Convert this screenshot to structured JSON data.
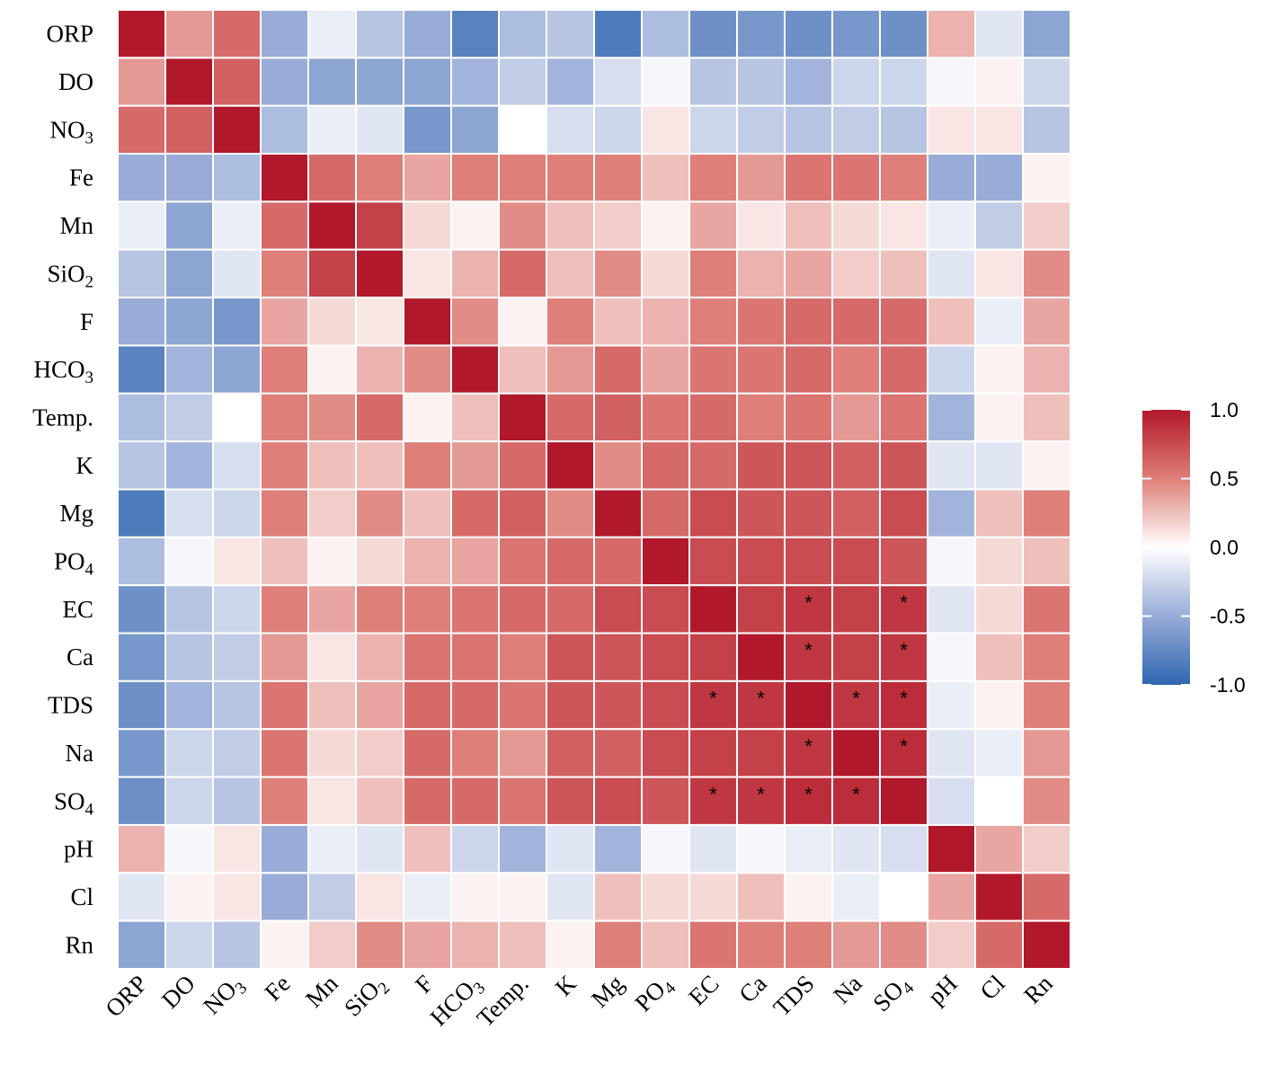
{
  "chart_data": {
    "type": "heatmap",
    "variables": [
      {
        "id": "ORP",
        "base": "ORP",
        "sub": ""
      },
      {
        "id": "DO",
        "base": "DO",
        "sub": ""
      },
      {
        "id": "NO3",
        "base": "NO",
        "sub": "3"
      },
      {
        "id": "Fe",
        "base": "Fe",
        "sub": ""
      },
      {
        "id": "Mn",
        "base": "Mn",
        "sub": ""
      },
      {
        "id": "SiO2",
        "base": "SiO",
        "sub": "2"
      },
      {
        "id": "F",
        "base": "F",
        "sub": ""
      },
      {
        "id": "HCO3",
        "base": "HCO",
        "sub": "3"
      },
      {
        "id": "Temp.",
        "base": "Temp.",
        "sub": ""
      },
      {
        "id": "K",
        "base": "K",
        "sub": ""
      },
      {
        "id": "Mg",
        "base": "Mg",
        "sub": ""
      },
      {
        "id": "PO4",
        "base": "PO",
        "sub": "4"
      },
      {
        "id": "EC",
        "base": "EC",
        "sub": ""
      },
      {
        "id": "Ca",
        "base": "Ca",
        "sub": ""
      },
      {
        "id": "TDS",
        "base": "TDS",
        "sub": ""
      },
      {
        "id": "Na",
        "base": "Na",
        "sub": ""
      },
      {
        "id": "SO4",
        "base": "SO",
        "sub": "4"
      },
      {
        "id": "pH",
        "base": "pH",
        "sub": ""
      },
      {
        "id": "Cl",
        "base": "Cl",
        "sub": ""
      },
      {
        "id": "Rn",
        "base": "Rn",
        "sub": ""
      }
    ],
    "matrix": [
      [
        1.0,
        0.4,
        0.6,
        -0.5,
        -0.1,
        -0.35,
        -0.5,
        -0.8,
        -0.4,
        -0.35,
        -0.85,
        -0.4,
        -0.7,
        -0.65,
        -0.7,
        -0.65,
        -0.7,
        0.3,
        -0.15,
        -0.55
      ],
      [
        0.4,
        1.0,
        0.65,
        -0.5,
        -0.55,
        -0.55,
        -0.55,
        -0.45,
        -0.3,
        -0.45,
        -0.2,
        -0.05,
        -0.35,
        -0.35,
        -0.45,
        -0.25,
        -0.25,
        -0.05,
        0.05,
        -0.25
      ],
      [
        0.6,
        0.65,
        1.0,
        -0.4,
        -0.1,
        -0.15,
        -0.65,
        -0.55,
        0.0,
        -0.2,
        -0.25,
        0.1,
        -0.25,
        -0.3,
        -0.35,
        -0.3,
        -0.35,
        0.1,
        0.1,
        -0.35
      ],
      [
        -0.5,
        -0.5,
        -0.4,
        1.0,
        0.6,
        0.5,
        0.35,
        0.5,
        0.5,
        0.5,
        0.5,
        0.25,
        0.5,
        0.4,
        0.55,
        0.55,
        0.5,
        -0.5,
        -0.5,
        0.05
      ],
      [
        -0.1,
        -0.55,
        -0.1,
        0.6,
        1.0,
        0.8,
        0.15,
        0.05,
        0.45,
        0.25,
        0.2,
        0.05,
        0.35,
        0.1,
        0.25,
        0.15,
        0.1,
        -0.1,
        -0.3,
        0.2
      ],
      [
        -0.35,
        -0.55,
        -0.15,
        0.5,
        0.8,
        1.0,
        0.1,
        0.3,
        0.6,
        0.25,
        0.45,
        0.15,
        0.5,
        0.3,
        0.35,
        0.2,
        0.25,
        -0.15,
        0.1,
        0.45
      ],
      [
        -0.5,
        -0.55,
        -0.65,
        0.35,
        0.15,
        0.1,
        1.0,
        0.45,
        0.05,
        0.5,
        0.25,
        0.3,
        0.5,
        0.55,
        0.6,
        0.6,
        0.6,
        0.25,
        -0.1,
        0.35
      ],
      [
        -0.8,
        -0.45,
        -0.55,
        0.5,
        0.05,
        0.3,
        0.45,
        1.0,
        0.25,
        0.4,
        0.6,
        0.35,
        0.55,
        0.55,
        0.6,
        0.5,
        0.6,
        -0.25,
        0.05,
        0.3
      ],
      [
        -0.4,
        -0.3,
        0.0,
        0.5,
        0.45,
        0.6,
        0.05,
        0.25,
        1.0,
        0.6,
        0.65,
        0.55,
        0.6,
        0.5,
        0.55,
        0.4,
        0.55,
        -0.45,
        0.05,
        0.25
      ],
      [
        -0.35,
        -0.45,
        -0.2,
        0.5,
        0.25,
        0.25,
        0.5,
        0.4,
        0.6,
        1.0,
        0.45,
        0.6,
        0.6,
        0.7,
        0.7,
        0.65,
        0.7,
        -0.15,
        -0.15,
        0.05
      ],
      [
        -0.85,
        -0.2,
        -0.25,
        0.5,
        0.2,
        0.45,
        0.25,
        0.6,
        0.65,
        0.45,
        1.0,
        0.6,
        0.75,
        0.7,
        0.7,
        0.65,
        0.75,
        -0.45,
        0.25,
        0.5
      ],
      [
        -0.4,
        -0.05,
        0.1,
        0.25,
        0.05,
        0.15,
        0.3,
        0.35,
        0.55,
        0.6,
        0.6,
        1.0,
        0.75,
        0.75,
        0.75,
        0.75,
        0.7,
        -0.05,
        0.15,
        0.25
      ],
      [
        -0.7,
        -0.35,
        -0.25,
        0.5,
        0.35,
        0.5,
        0.5,
        0.55,
        0.6,
        0.6,
        0.75,
        0.75,
        1.0,
        0.8,
        0.85,
        0.8,
        0.85,
        -0.15,
        0.15,
        0.55
      ],
      [
        -0.65,
        -0.35,
        -0.3,
        0.4,
        0.1,
        0.3,
        0.55,
        0.55,
        0.5,
        0.7,
        0.7,
        0.75,
        0.8,
        1.0,
        0.85,
        0.8,
        0.85,
        -0.05,
        0.25,
        0.5
      ],
      [
        -0.7,
        -0.45,
        -0.35,
        0.55,
        0.25,
        0.35,
        0.6,
        0.6,
        0.55,
        0.7,
        0.7,
        0.75,
        0.85,
        0.85,
        1.0,
        0.85,
        0.9,
        -0.1,
        0.05,
        0.5
      ],
      [
        -0.65,
        -0.25,
        -0.3,
        0.55,
        0.15,
        0.2,
        0.6,
        0.5,
        0.4,
        0.65,
        0.65,
        0.75,
        0.8,
        0.8,
        0.85,
        1.0,
        0.9,
        -0.15,
        -0.1,
        0.4
      ],
      [
        -0.7,
        -0.25,
        -0.35,
        0.5,
        0.1,
        0.25,
        0.6,
        0.6,
        0.55,
        0.7,
        0.75,
        0.7,
        0.85,
        0.85,
        0.9,
        0.9,
        1.0,
        -0.2,
        0.0,
        0.45
      ],
      [
        0.3,
        -0.05,
        0.1,
        -0.5,
        -0.1,
        -0.15,
        0.25,
        -0.25,
        -0.45,
        -0.15,
        -0.45,
        -0.05,
        -0.15,
        -0.05,
        -0.1,
        -0.15,
        -0.2,
        1.0,
        0.35,
        0.2
      ],
      [
        -0.15,
        0.05,
        0.1,
        -0.5,
        -0.3,
        0.1,
        -0.1,
        0.05,
        0.05,
        -0.15,
        0.25,
        0.15,
        0.15,
        0.25,
        0.05,
        -0.1,
        0.0,
        0.35,
        1.0,
        0.6
      ],
      [
        -0.55,
        -0.25,
        -0.35,
        0.05,
        0.2,
        0.45,
        0.35,
        0.3,
        0.25,
        0.05,
        0.5,
        0.25,
        0.55,
        0.5,
        0.5,
        0.4,
        0.45,
        0.2,
        0.6,
        1.0
      ]
    ],
    "significant": [
      [
        12,
        14
      ],
      [
        12,
        16
      ],
      [
        13,
        14
      ],
      [
        13,
        16
      ],
      [
        14,
        12
      ],
      [
        14,
        13
      ],
      [
        14,
        15
      ],
      [
        14,
        16
      ],
      [
        15,
        14
      ],
      [
        15,
        16
      ],
      [
        16,
        12
      ],
      [
        16,
        13
      ],
      [
        16,
        14
      ],
      [
        16,
        15
      ]
    ],
    "significance_marker": "*",
    "color_scale": {
      "min": -1.0,
      "max": 1.0,
      "low_color": "#2E66B0",
      "mid_color": "#FFFFFF",
      "high_color": "#B2182B",
      "ticks": [
        "1.0",
        "0.5",
        "0.0",
        "-0.5",
        "-1.0"
      ],
      "tick_values": [
        1.0,
        0.5,
        0.0,
        -0.5,
        -1.0
      ]
    },
    "grid_line_color": "#FFFFFF"
  }
}
